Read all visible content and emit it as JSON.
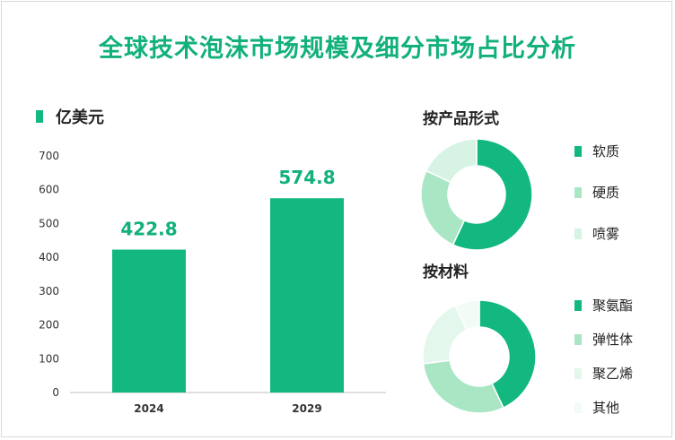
{
  "title": "全球技术泡沫市场规模及细分市场占比分析",
  "chart_data": [
    {
      "type": "bar",
      "legend": "亿美元",
      "categories": [
        "2024",
        "2029"
      ],
      "values": [
        422.8,
        574.8
      ],
      "data_labels": [
        "422.8",
        "574.8"
      ],
      "ylim": [
        0,
        700
      ],
      "yticks": [
        0,
        100,
        200,
        300,
        400,
        500,
        600,
        700
      ],
      "color": "#12b880"
    },
    {
      "type": "pie",
      "title": "按产品形式",
      "labels": [
        "软质",
        "硬质",
        "喷雾"
      ],
      "values": [
        57,
        25,
        18
      ],
      "colors": [
        "#12b880",
        "#a8e6c4",
        "#d6f3e3"
      ]
    },
    {
      "type": "pie",
      "title": "按材料",
      "labels": [
        "聚氨酯",
        "弹性体",
        "聚乙烯",
        "其他"
      ],
      "values": [
        43,
        30,
        20,
        7
      ],
      "colors": [
        "#12b880",
        "#a8e6c4",
        "#e4f7ec",
        "#f2fbf6"
      ]
    }
  ]
}
